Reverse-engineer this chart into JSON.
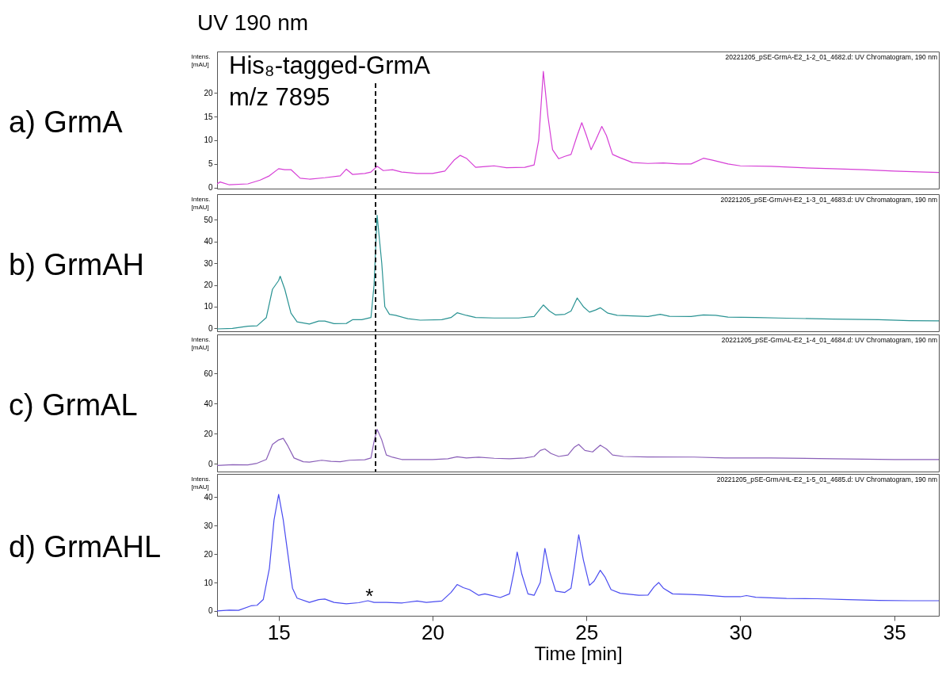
{
  "chart_data": [
    {
      "type": "line",
      "title": "a) GrmA",
      "subtitle": "UV 190 nm",
      "ylabel": "Intens. [mAU]",
      "xlim": [
        13.0,
        36.45
      ],
      "xticks": [
        15,
        20,
        25,
        30,
        35
      ],
      "ylim": [
        -0.2,
        28.7
      ],
      "yticks": [
        0,
        5,
        10,
        15,
        20
      ],
      "tick_labels": "y",
      "line_style": "solid",
      "annotations": [
        "20221205_pSE-GrmA-E2_1-2_01_4682.d: UV Chromatogram, 190 nm",
        "His₈-tagged-GrmA",
        "m/z 7895"
      ],
      "ref_lines": [
        {
          "axis": "x",
          "value": 18.15,
          "line_style": "dashed",
          "color": "#000000"
        }
      ],
      "x": [
        13.0,
        13.1,
        13.4,
        14.0,
        14.4,
        14.7,
        15.0,
        15.2,
        15.4,
        15.7,
        16.0,
        16.5,
        17.0,
        17.2,
        17.4,
        17.8,
        18.0,
        18.2,
        18.4,
        18.7,
        19.0,
        19.5,
        20.0,
        20.4,
        20.7,
        20.9,
        21.1,
        21.4,
        21.8,
        22.0,
        22.4,
        23.0,
        23.3,
        23.45,
        23.6,
        23.75,
        23.9,
        24.1,
        24.3,
        24.5,
        24.7,
        24.85,
        25.0,
        25.15,
        25.3,
        25.5,
        25.65,
        25.85,
        26.1,
        26.5,
        27.0,
        27.5,
        28.0,
        28.4,
        28.8,
        29.1,
        29.6,
        30.0,
        31.0,
        32.0,
        33.0,
        34.0,
        35.0,
        36.0,
        36.45
      ],
      "series": [
        {
          "color": "#d63fd6",
          "values": [
            0.8,
            1.2,
            0.6,
            0.8,
            1.6,
            2.5,
            4.0,
            3.8,
            3.8,
            2.0,
            1.8,
            2.1,
            2.5,
            3.9,
            2.8,
            3.0,
            3.3,
            4.5,
            3.6,
            3.8,
            3.3,
            3.0,
            3.0,
            3.5,
            5.8,
            6.8,
            6.2,
            4.3,
            4.5,
            4.6,
            4.2,
            4.3,
            4.8,
            10,
            24.5,
            15,
            8,
            6.1,
            6.6,
            7.0,
            11,
            13.7,
            11,
            8.0,
            10,
            12.9,
            11,
            7.0,
            6.3,
            5.3,
            5.1,
            5.2,
            5.0,
            5.0,
            6.2,
            5.8,
            5.0,
            4.6,
            4.5,
            4.2,
            4.0,
            3.8,
            3.5,
            3.3,
            3.2
          ]
        }
      ]
    },
    {
      "type": "line",
      "title": "b) GrmAH",
      "ylabel": "Intens. [mAU]",
      "xlim": [
        13.0,
        36.45
      ],
      "xticks": [
        15,
        20,
        25,
        30,
        35
      ],
      "ylim": [
        -1.3,
        61.7
      ],
      "yticks": [
        0,
        10,
        20,
        30,
        40,
        50
      ],
      "tick_labels": "y",
      "line_style": "solid",
      "annotations": [
        "20221205_pSE-GrmAH-E2_1-3_01_4683.d: UV Chromatogram, 190 nm"
      ],
      "ref_lines": [
        {
          "axis": "x",
          "value": 18.15,
          "line_style": "dashed",
          "color": "#000000"
        }
      ],
      "x": [
        13.0,
        13.5,
        14.0,
        14.3,
        14.6,
        14.8,
        15.0,
        15.05,
        15.2,
        15.4,
        15.6,
        16.0,
        16.3,
        16.5,
        16.8,
        17.2,
        17.4,
        17.7,
        18.0,
        18.1,
        18.2,
        18.35,
        18.45,
        18.6,
        18.8,
        19.2,
        19.6,
        20.3,
        20.6,
        20.8,
        21.1,
        21.4,
        22.0,
        22.8,
        23.3,
        23.5,
        23.6,
        23.8,
        24.0,
        24.3,
        24.5,
        24.7,
        24.9,
        25.1,
        25.3,
        25.45,
        25.7,
        26.0,
        27.0,
        27.4,
        27.7,
        28.4,
        28.8,
        29.2,
        29.6,
        30.5,
        31.5,
        33.0,
        34.5,
        35.5,
        36.45
      ],
      "series": [
        {
          "color": "#2a9393",
          "values": [
            -0.2,
            0.0,
            1.0,
            1.2,
            5,
            18,
            22,
            24,
            18,
            7,
            3,
            2.0,
            3.4,
            3.4,
            2.2,
            2.3,
            4,
            4.0,
            5,
            20,
            52,
            30,
            10,
            6.5,
            6.0,
            4.5,
            3.8,
            4.0,
            5,
            7.2,
            6.0,
            5.0,
            4.8,
            4.8,
            5.5,
            9,
            10.8,
            8,
            6.2,
            6.5,
            8,
            14,
            10,
            7.5,
            8.5,
            9.5,
            7.0,
            6.0,
            5.5,
            6.5,
            5.6,
            5.5,
            6.2,
            6.0,
            5.2,
            5.0,
            4.7,
            4.3,
            4.0,
            3.6,
            3.5
          ]
        }
      ]
    },
    {
      "type": "line",
      "title": "c) GrmAL",
      "ylabel": "Intens. [mAU]",
      "xlim": [
        13.0,
        36.45
      ],
      "xticks": [
        15,
        20,
        25,
        30,
        35
      ],
      "ylim": [
        -5,
        86
      ],
      "yticks": [
        0,
        20,
        40,
        60
      ],
      "tick_labels": "y",
      "line_style": "solid",
      "annotations": [
        "20221205_pSE-GrmAL-E2_1-4_01_4684.d: UV Chromatogram, 190 nm"
      ],
      "ref_lines": [
        {
          "axis": "x",
          "value": 18.15,
          "line_style": "dashed",
          "color": "#000000"
        }
      ],
      "x": [
        13.0,
        13.5,
        14.0,
        14.3,
        14.6,
        14.8,
        15.0,
        15.15,
        15.3,
        15.5,
        15.8,
        16.0,
        16.4,
        16.7,
        17.0,
        17.3,
        17.8,
        18.0,
        18.1,
        18.2,
        18.35,
        18.5,
        18.7,
        19.0,
        20.0,
        20.5,
        20.8,
        21.1,
        21.5,
        22.0,
        22.5,
        23.0,
        23.3,
        23.5,
        23.65,
        23.85,
        24.1,
        24.4,
        24.6,
        24.75,
        24.95,
        25.2,
        25.45,
        25.65,
        25.85,
        26.2,
        27.0,
        28.5,
        29.5,
        31.0,
        33.0,
        35.0,
        36.45
      ],
      "series": [
        {
          "color": "#8a5fb8",
          "values": [
            -1,
            -0.5,
            -0.6,
            0.5,
            3,
            13,
            16,
            17,
            12,
            4,
            1.5,
            1.2,
            2.5,
            1.8,
            1.5,
            2.5,
            2.8,
            4,
            15,
            23,
            16,
            6,
            4.5,
            3.0,
            3.0,
            3.5,
            4.8,
            4.0,
            4.5,
            3.8,
            3.5,
            4.0,
            5,
            9,
            10,
            7,
            5,
            6,
            11,
            13,
            9,
            8,
            12.5,
            10,
            6,
            5,
            4.7,
            4.6,
            4.0,
            4.0,
            3.5,
            3.0,
            3.0
          ]
        }
      ]
    },
    {
      "type": "line",
      "title": "d) GrmAHL",
      "ylabel": "Intens. [mAU]",
      "xlabel": "Time [min]",
      "xlim": [
        13.0,
        36.45
      ],
      "xticks": [
        15,
        20,
        25,
        30,
        35
      ],
      "ylim": [
        -1.7,
        48.2
      ],
      "yticks": [
        0,
        10,
        20,
        30,
        40
      ],
      "line_style": "solid",
      "annotations": [
        "20221205_pSE-GrmAHL-E2_1-5_01_4685.d: UV Chromatogram, 190 nm",
        {
          "text": "*",
          "x": 17.9,
          "y": 3.6
        }
      ],
      "x": [
        13.0,
        13.4,
        13.7,
        14.1,
        14.3,
        14.5,
        14.7,
        14.85,
        15.0,
        15.15,
        15.3,
        15.45,
        15.6,
        16.0,
        16.3,
        16.5,
        16.8,
        17.2,
        17.6,
        17.9,
        18.1,
        18.5,
        19.0,
        19.5,
        19.8,
        20.3,
        20.6,
        20.8,
        21.0,
        21.2,
        21.5,
        21.7,
        21.9,
        22.2,
        22.5,
        22.65,
        22.75,
        22.9,
        23.1,
        23.3,
        23.5,
        23.65,
        23.8,
        24.0,
        24.3,
        24.5,
        24.6,
        24.75,
        24.9,
        25.1,
        25.25,
        25.45,
        25.6,
        25.8,
        26.1,
        26.7,
        27.0,
        27.2,
        27.35,
        27.5,
        27.8,
        28.4,
        28.8,
        29.5,
        30.0,
        30.2,
        30.5,
        31.5,
        32.5,
        33.5,
        34.5,
        35.5,
        36.45
      ],
      "series": [
        {
          "color": "#4a4cf0",
          "values": [
            0,
            0.3,
            0.2,
            1.8,
            2.0,
            4,
            15,
            32,
            41,
            32,
            20,
            8,
            4.5,
            3.0,
            4.0,
            4.2,
            3.0,
            2.5,
            2.9,
            3.6,
            3.0,
            3.0,
            2.8,
            3.5,
            3.0,
            3.5,
            6.5,
            9.3,
            8.2,
            7.5,
            5.5,
            6.0,
            5.5,
            4.7,
            6,
            14,
            20.7,
            13,
            6,
            5.5,
            10,
            22,
            14,
            7,
            6.5,
            8,
            15,
            26.8,
            18,
            9,
            10.5,
            14.3,
            12,
            7.5,
            6.2,
            5.5,
            5.6,
            8.5,
            10,
            8,
            6,
            5.8,
            5.6,
            5.0,
            5.0,
            5.4,
            4.8,
            4.4,
            4.3,
            4.0,
            3.7,
            3.6,
            3.6
          ]
        }
      ]
    }
  ]
}
